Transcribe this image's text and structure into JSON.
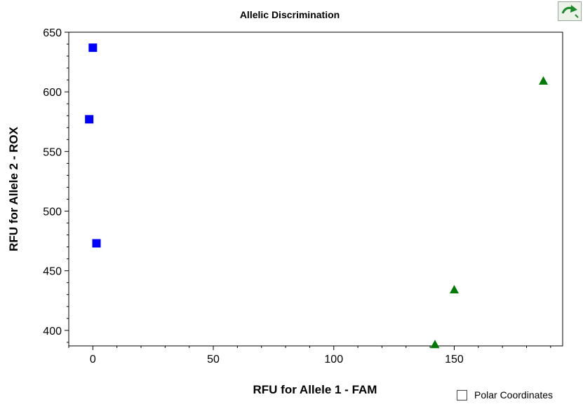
{
  "chart_data": {
    "type": "scatter",
    "title": "Allelic Discrimination",
    "xlabel": "RFU for Allele 1 - FAM",
    "ylabel": "RFU for Allele 2 - ROX",
    "xlim": [
      -10,
      195
    ],
    "ylim": [
      387,
      650
    ],
    "xticks": [
      0,
      50,
      100,
      150
    ],
    "yticks": [
      400,
      450,
      500,
      550,
      600,
      650
    ],
    "grid": false,
    "series": [
      {
        "marker": "square",
        "color": "#0000ff",
        "points": [
          [
            0,
            637
          ],
          [
            -1.5,
            577
          ],
          [
            1.5,
            473
          ]
        ]
      },
      {
        "marker": "triangle",
        "color": "#007a00",
        "points": [
          [
            187,
            609
          ],
          [
            150,
            434
          ],
          [
            142,
            388
          ]
        ]
      }
    ]
  },
  "controls": {
    "polar_label": "Polar Coordinates",
    "polar_checked": false,
    "refresh_icon": "refresh-arrow-icon"
  }
}
